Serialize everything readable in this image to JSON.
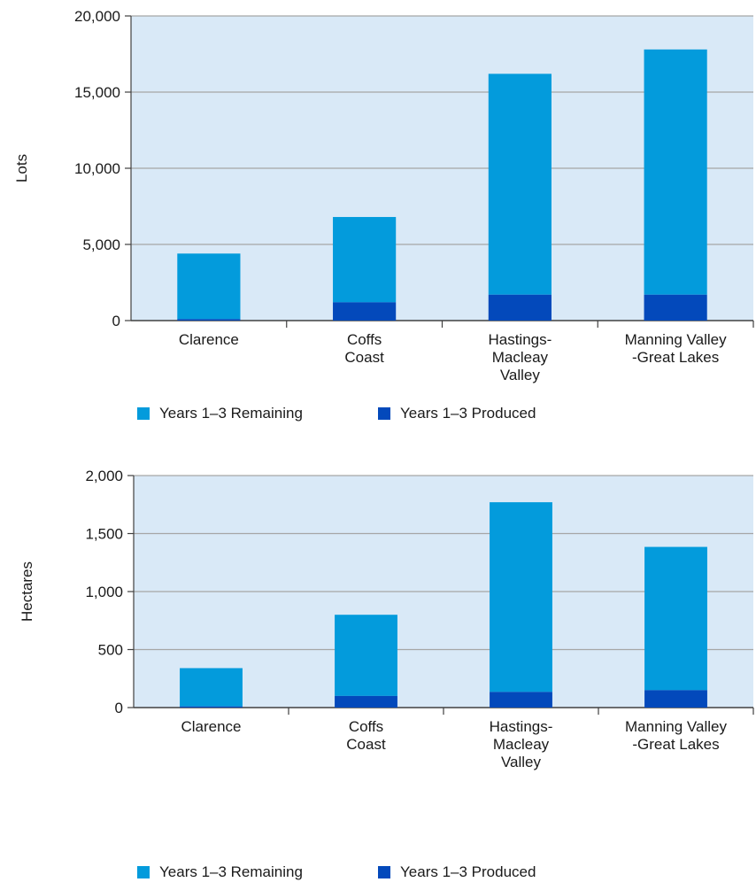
{
  "colors": {
    "plot_bg": "#d9e9f7",
    "remaining": "#039bdc",
    "produced": "#0349bb",
    "grid": "#a6a6a6",
    "axis": "#404040"
  },
  "legend": {
    "remaining_label": "Years 1–3 Remaining",
    "produced_label": "Years 1–3 Produced"
  },
  "chart_data": [
    {
      "type": "bar",
      "stacked": true,
      "ylabel": "Lots",
      "ylim": [
        0,
        20000
      ],
      "yticks": [
        0,
        5000,
        10000,
        15000,
        20000
      ],
      "ytick_labels": [
        "0",
        "5,000",
        "10,000",
        "15,000",
        "20,000"
      ],
      "categories": [
        [
          "Clarence"
        ],
        [
          "Coffs",
          "Coast"
        ],
        [
          "Hastings-",
          "Macleay",
          "Valley"
        ],
        [
          "Manning Valley",
          "-Great Lakes"
        ]
      ],
      "series": [
        {
          "name": "Years 1–3 Produced",
          "values": [
            100,
            1200,
            1700,
            1700
          ]
        },
        {
          "name": "Years 1–3 Remaining",
          "values": [
            4300,
            5600,
            14500,
            16100
          ]
        }
      ],
      "grid": true,
      "legend_position": "bottom"
    },
    {
      "type": "bar",
      "stacked": true,
      "ylabel": "Hectares",
      "ylim": [
        0,
        2000
      ],
      "yticks": [
        0,
        500,
        1000,
        1500,
        2000
      ],
      "ytick_labels": [
        "0",
        "500",
        "1,000",
        "1,500",
        "2,000"
      ],
      "categories": [
        [
          "Clarence"
        ],
        [
          "Coffs",
          "Coast"
        ],
        [
          "Hastings-",
          "Macleay",
          "Valley"
        ],
        [
          "Manning Valley",
          "-Great Lakes"
        ]
      ],
      "series": [
        {
          "name": "Years 1–3 Produced",
          "values": [
            10,
            100,
            135,
            150
          ]
        },
        {
          "name": "Years 1–3 Remaining",
          "values": [
            330,
            700,
            1635,
            1235
          ]
        }
      ],
      "grid": true,
      "legend_position": "bottom"
    }
  ]
}
